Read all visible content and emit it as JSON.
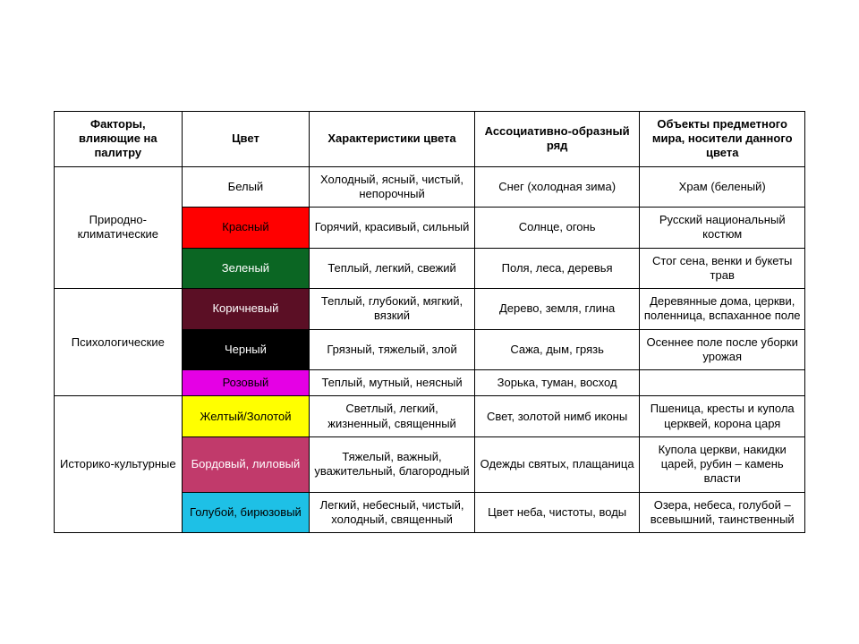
{
  "table": {
    "headers": [
      "Факторы, влияющие на палитру",
      "Цвет",
      "Характеристики цвета",
      "Ассоциативно-образный ряд",
      "Объекты предметного мира, носители данного цвета"
    ],
    "groups": [
      {
        "factor": "Природно-климатические",
        "rows": [
          {
            "color_name": "Белый",
            "bg": "#ffffff",
            "fg": "#000000",
            "char": "Холодный, ясный, чистый, непорочный",
            "assoc": "Снег (холодная зима)",
            "obj": "Храм (беленый)"
          },
          {
            "color_name": "Красный",
            "bg": "#ff0000",
            "fg": "#000000",
            "char": "Горячий, красивый, сильный",
            "assoc": "Солнце, огонь",
            "obj": "Русский национальный костюм"
          },
          {
            "color_name": "Зеленый",
            "bg": "#0b6623",
            "fg": "#ffffff",
            "char": "Теплый, легкий, свежий",
            "assoc": "Поля, леса, деревья",
            "obj": "Стог сена, венки и букеты трав"
          }
        ]
      },
      {
        "factor": "Психологические",
        "rows": [
          {
            "color_name": "Коричневый",
            "bg": "#5b0f25",
            "fg": "#ffffff",
            "char": "Теплый, глубокий, мягкий, вязкий",
            "assoc": "Дерево, земля, глина",
            "obj": "Деревянные дома, церкви, поленница, вспаханное поле"
          },
          {
            "color_name": "Черный",
            "bg": "#000000",
            "fg": "#ffffff",
            "char": "Грязный, тяжелый, злой",
            "assoc": "Сажа, дым, грязь",
            "obj": "Осеннее поле после уборки урожая"
          },
          {
            "color_name": "Розовый",
            "bg": "#e500e5",
            "fg": "#000000",
            "char": "Теплый, мутный, неясный",
            "assoc": "Зорька, туман, восход",
            "obj": ""
          }
        ]
      },
      {
        "factor": "Историко-культурные",
        "rows": [
          {
            "color_name": "Желтый/Золотой",
            "bg": "#ffff00",
            "fg": "#000000",
            "char": "Светлый, легкий, жизненный, священный",
            "assoc": "Свет, золотой нимб иконы",
            "obj": "Пшеница, кресты и купола церквей, корона царя"
          },
          {
            "color_name": "Бордовый, лиловый",
            "bg": "#c13a6b",
            "fg": "#ffffff",
            "char": "Тяжелый, важный, уважительный, благородный",
            "assoc": "Одежды святых, плащаница",
            "obj": "Купола церкви, накидки царей, рубин – камень власти"
          },
          {
            "color_name": "Голубой, бирюзовый",
            "bg": "#1ec0e6",
            "fg": "#000000",
            "char": "Легкий, небесный, чистый, холодный, священный",
            "assoc": "Цвет неба, чистоты, воды",
            "obj": "Озера, небеса, голубой – всевышний, таинственный"
          }
        ]
      }
    ]
  }
}
